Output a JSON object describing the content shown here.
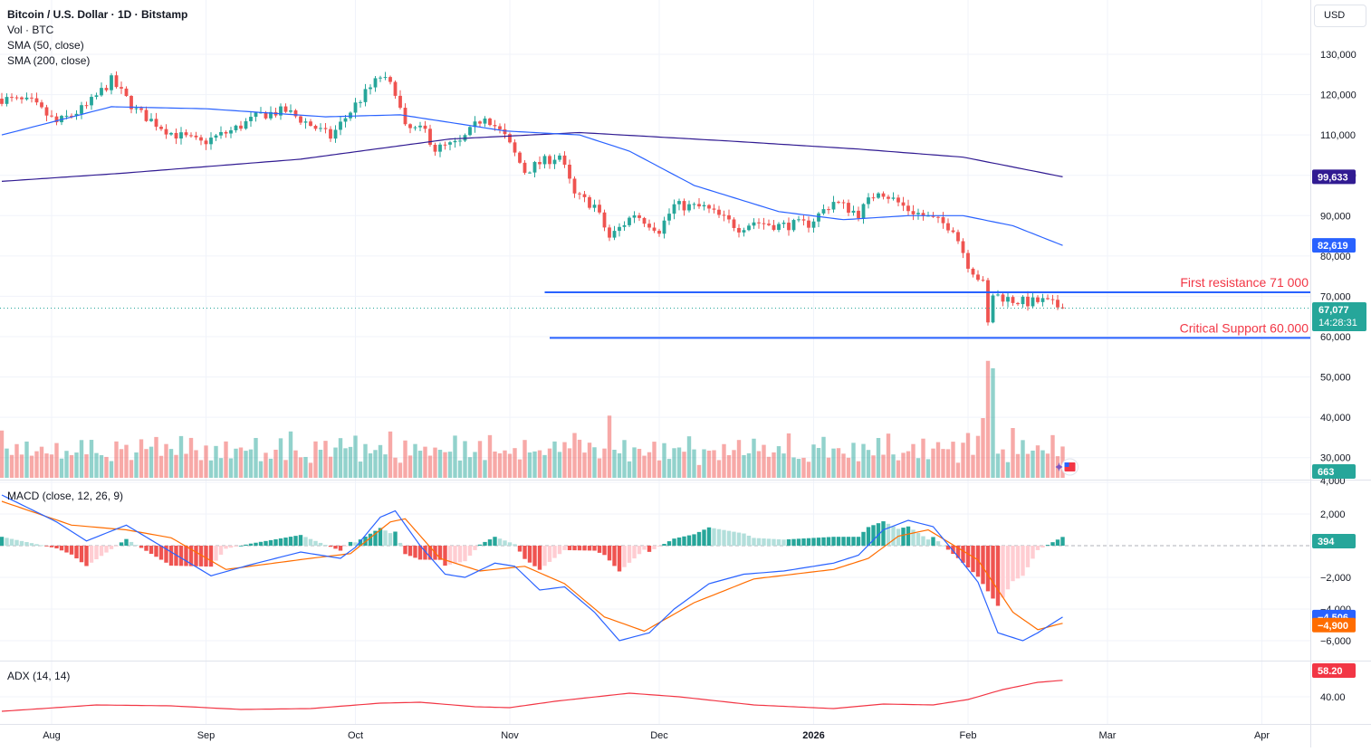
{
  "header": {
    "symbol_title": "Bitcoin / U.S. Dollar · 1D · Bitstamp",
    "indicators": [
      "Vol · BTC",
      "SMA (50, close)",
      "SMA (200, close)"
    ],
    "currency": "USD"
  },
  "colors": {
    "up": "#26a69a",
    "down": "#ef5350",
    "sma50": "#2962ff",
    "sma200": "#311b92",
    "drawing": "#2962ff",
    "annotation": "#f23645",
    "macd": "#2962ff",
    "signal": "#ff6d00",
    "adx": "#f23645"
  },
  "chart_data": [
    {
      "type": "candlestick",
      "pane": "price",
      "y_ticks": [
        "130,000",
        "120,000",
        "110,000",
        "100,000",
        "90,000",
        "80,000",
        "70,000",
        "60,000",
        "50,000",
        "40,000",
        "30,000"
      ],
      "ylim": [
        26000,
        133000
      ],
      "x_labels": [
        "Aug",
        "Sep",
        "Oct",
        "Nov",
        "Dec",
        "2026",
        "Feb",
        "Mar",
        "Apr"
      ],
      "price_anchors": [
        [
          "2025-07-22",
          119000
        ],
        [
          "2025-07-28",
          118000
        ],
        [
          "2025-08-02",
          113000
        ],
        [
          "2025-08-08",
          117000
        ],
        [
          "2025-08-13",
          123500
        ],
        [
          "2025-08-18",
          116000
        ],
        [
          "2025-08-25",
          110500
        ],
        [
          "2025-08-31",
          108000
        ],
        [
          "2025-09-06",
          111000
        ],
        [
          "2025-09-12",
          115000
        ],
        [
          "2025-09-17",
          116000
        ],
        [
          "2025-09-22",
          112500
        ],
        [
          "2025-09-26",
          109500
        ],
        [
          "2025-10-01",
          117500
        ],
        [
          "2025-10-06",
          124500
        ],
        [
          "2025-10-09",
          121000
        ],
        [
          "2025-10-11",
          111500
        ],
        [
          "2025-10-15",
          111000
        ],
        [
          "2025-10-17",
          106500
        ],
        [
          "2025-10-22",
          108000
        ],
        [
          "2025-10-27",
          115000
        ],
        [
          "2025-10-31",
          109500
        ],
        [
          "2025-11-04",
          101000
        ],
        [
          "2025-11-07",
          103000
        ],
        [
          "2025-11-11",
          105000
        ],
        [
          "2025-11-14",
          95000
        ],
        [
          "2025-11-18",
          92500
        ],
        [
          "2025-11-21",
          84500
        ],
        [
          "2025-11-26",
          90500
        ],
        [
          "2025-12-01",
          86500
        ],
        [
          "2025-12-04",
          92500
        ],
        [
          "2025-12-10",
          92000
        ],
        [
          "2025-12-17",
          87000
        ],
        [
          "2025-12-20",
          88500
        ],
        [
          "2025-12-25",
          87500
        ],
        [
          "2025-12-31",
          88000
        ],
        [
          "2026-01-05",
          93500
        ],
        [
          "2026-01-10",
          90500
        ],
        [
          "2026-01-14",
          96500
        ],
        [
          "2026-01-20",
          91500
        ],
        [
          "2026-01-25",
          89000
        ],
        [
          "2026-01-29",
          87000
        ],
        [
          "2026-02-01",
          78000
        ],
        [
          "2026-02-04",
          73000
        ],
        [
          "2026-02-05",
          63000
        ],
        [
          "2026-02-06",
          70500
        ],
        [
          "2026-02-10",
          69000
        ],
        [
          "2026-02-13",
          68500
        ],
        [
          "2026-02-16",
          68800
        ],
        [
          "2026-02-20",
          67077
        ]
      ],
      "volume_pattern": [
        0.25,
        0.4,
        0.3,
        0.5,
        0.35,
        0.6,
        0.3,
        0.45,
        0.55,
        0.35,
        0.4,
        0.65,
        0.3,
        0.5,
        0.35,
        0.45,
        0.6,
        0.3,
        0.7,
        0.4
      ],
      "volume_spikes": [
        [
          "2025-07-22",
          0.95
        ],
        [
          "2025-10-11",
          0.75
        ],
        [
          "2025-10-31",
          0.55
        ],
        [
          "2025-11-14",
          0.9
        ],
        [
          "2025-11-21",
          1.25
        ],
        [
          "2026-01-14",
          0.8
        ],
        [
          "2026-02-01",
          0.9
        ],
        [
          "2026-02-04",
          1.2
        ],
        [
          "2026-02-05",
          2.35
        ],
        [
          "2026-02-06",
          2.2
        ],
        [
          "2026-02-10",
          1.0
        ]
      ],
      "sma50_anchors": [
        [
          "2025-07-22",
          110000
        ],
        [
          "2025-08-13",
          117000
        ],
        [
          "2025-09-01",
          116500
        ],
        [
          "2025-09-25",
          114500
        ],
        [
          "2025-10-10",
          115000
        ],
        [
          "2025-10-31",
          111000
        ],
        [
          "2025-11-15",
          110000
        ],
        [
          "2025-11-25",
          106000
        ],
        [
          "2025-12-08",
          97500
        ],
        [
          "2025-12-25",
          91000
        ],
        [
          "2026-01-07",
          89000
        ],
        [
          "2026-01-20",
          90000
        ],
        [
          "2026-01-31",
          90000
        ],
        [
          "2026-02-10",
          87500
        ],
        [
          "2026-02-20",
          82619
        ]
      ],
      "sma200_anchors": [
        [
          "2025-07-22",
          98500
        ],
        [
          "2025-08-15",
          100500
        ],
        [
          "2025-09-20",
          104000
        ],
        [
          "2025-10-20",
          109000
        ],
        [
          "2025-11-15",
          110600
        ],
        [
          "2025-12-15",
          108500
        ],
        [
          "2026-01-10",
          106500
        ],
        [
          "2026-01-31",
          104500
        ],
        [
          "2026-02-20",
          99633
        ]
      ],
      "levels": [
        {
          "label": "First resistance 71 000",
          "price": 71000,
          "start": "2025-11-08"
        },
        {
          "label": "Critical Support 60.000",
          "price": 59700,
          "start": "2025-11-09"
        }
      ],
      "price_badges": {
        "sma200": "99,633",
        "sma50": "82,619",
        "last": "67,077",
        "countdown": "14:28:31",
        "volume": "663"
      }
    },
    {
      "type": "macd",
      "pane": "macd",
      "title": "MACD (close, 12, 26, 9)",
      "y_ticks": [
        "4,000",
        "2,000",
        "0",
        "−2,000",
        "−4,000",
        "−6,000"
      ],
      "ylim": [
        -6500,
        4300
      ],
      "macd_anchors": [
        [
          "2025-07-22",
          3200
        ],
        [
          "2025-08-02",
          1500
        ],
        [
          "2025-08-08",
          300
        ],
        [
          "2025-08-16",
          1300
        ],
        [
          "2025-08-25",
          -400
        ],
        [
          "2025-09-02",
          -1900
        ],
        [
          "2025-09-10",
          -1200
        ],
        [
          "2025-09-20",
          -400
        ],
        [
          "2025-09-28",
          -800
        ],
        [
          "2025-10-01",
          -100
        ],
        [
          "2025-10-06",
          1800
        ],
        [
          "2025-10-09",
          2200
        ],
        [
          "2025-10-14",
          0
        ],
        [
          "2025-10-19",
          -1800
        ],
        [
          "2025-10-23",
          -2000
        ],
        [
          "2025-10-29",
          -1100
        ],
        [
          "2025-11-02",
          -1300
        ],
        [
          "2025-11-07",
          -2800
        ],
        [
          "2025-11-12",
          -2600
        ],
        [
          "2025-11-18",
          -4200
        ],
        [
          "2025-11-23",
          -6000
        ],
        [
          "2025-11-29",
          -5500
        ],
        [
          "2025-12-04",
          -4000
        ],
        [
          "2025-12-11",
          -2400
        ],
        [
          "2025-12-18",
          -1800
        ],
        [
          "2025-12-26",
          -1600
        ],
        [
          "2026-01-05",
          -1100
        ],
        [
          "2026-01-10",
          -600
        ],
        [
          "2026-01-15",
          1000
        ],
        [
          "2026-01-20",
          1600
        ],
        [
          "2026-01-25",
          1200
        ],
        [
          "2026-01-30",
          -700
        ],
        [
          "2026-02-03",
          -2300
        ],
        [
          "2026-02-07",
          -5500
        ],
        [
          "2026-02-12",
          -6000
        ],
        [
          "2026-02-15",
          -5500
        ],
        [
          "2026-02-20",
          -4506
        ]
      ],
      "signal_anchors": [
        [
          "2025-07-22",
          2800
        ],
        [
          "2025-08-05",
          1300
        ],
        [
          "2025-08-16",
          1000
        ],
        [
          "2025-08-25",
          500
        ],
        [
          "2025-09-05",
          -1500
        ],
        [
          "2025-09-22",
          -800
        ],
        [
          "2025-09-30",
          -500
        ],
        [
          "2025-10-08",
          1500
        ],
        [
          "2025-10-11",
          1700
        ],
        [
          "2025-10-18",
          -800
        ],
        [
          "2025-10-26",
          -1600
        ],
        [
          "2025-11-04",
          -1300
        ],
        [
          "2025-11-12",
          -2400
        ],
        [
          "2025-11-20",
          -4500
        ],
        [
          "2025-11-28",
          -5400
        ],
        [
          "2025-12-08",
          -3600
        ],
        [
          "2025-12-20",
          -2100
        ],
        [
          "2026-01-05",
          -1500
        ],
        [
          "2026-01-12",
          -800
        ],
        [
          "2026-01-18",
          600
        ],
        [
          "2026-01-24",
          1000
        ],
        [
          "2026-02-03",
          -900
        ],
        [
          "2026-02-10",
          -4200
        ],
        [
          "2026-02-15",
          -5300
        ],
        [
          "2026-02-20",
          -4900
        ]
      ],
      "badges": {
        "histogram": "394",
        "macd": "−4,506",
        "signal": "−4,900"
      }
    },
    {
      "type": "line",
      "pane": "adx",
      "title": "ADX (14, 14)",
      "y_ticks": [
        "40.00"
      ],
      "ylim": [
        28,
        62
      ],
      "adx_anchors": [
        [
          "2025-07-22",
          24
        ],
        [
          "2025-08-10",
          31
        ],
        [
          "2025-08-25",
          30
        ],
        [
          "2025-09-08",
          26
        ],
        [
          "2025-09-22",
          27
        ],
        [
          "2025-10-06",
          33
        ],
        [
          "2025-10-14",
          34
        ],
        [
          "2025-10-25",
          29
        ],
        [
          "2025-11-01",
          28
        ],
        [
          "2025-11-10",
          35
        ],
        [
          "2025-11-25",
          44
        ],
        [
          "2025-12-05",
          40
        ],
        [
          "2025-12-20",
          31
        ],
        [
          "2026-01-05",
          27
        ],
        [
          "2026-01-15",
          32
        ],
        [
          "2026-01-25",
          31
        ],
        [
          "2026-02-01",
          37
        ],
        [
          "2026-02-08",
          48
        ],
        [
          "2026-02-15",
          56
        ],
        [
          "2026-02-20",
          58.2
        ]
      ],
      "badge": "58.20"
    }
  ]
}
